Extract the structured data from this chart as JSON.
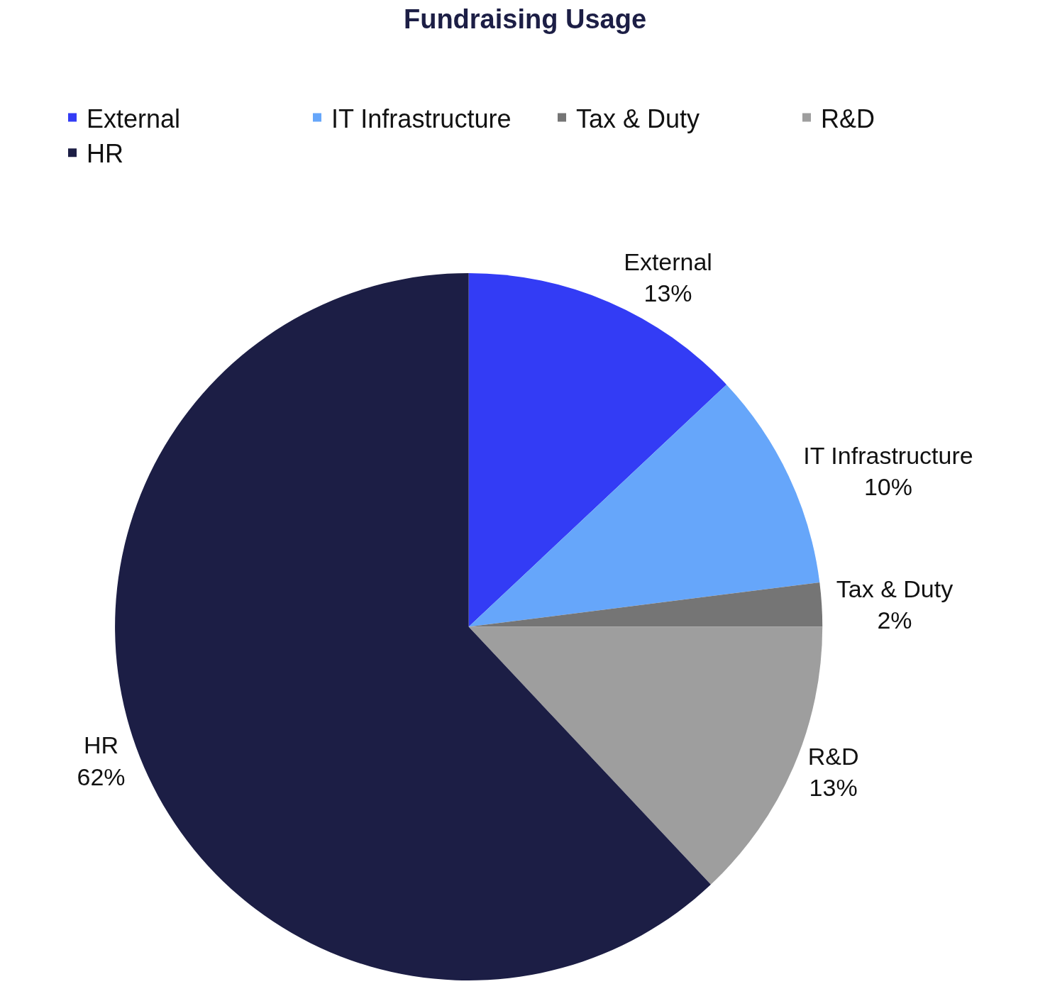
{
  "chart_data": {
    "type": "pie",
    "title": "Fundraising Usage",
    "categories": [
      "External",
      "IT Infrastructure",
      "Tax & Duty",
      "R&D",
      "HR"
    ],
    "values": [
      13,
      10,
      2,
      13,
      62
    ],
    "value_labels": [
      "13%",
      "10%",
      "2%",
      "13%",
      "62%"
    ],
    "colors": [
      "#333cf5",
      "#66a6fa",
      "#757575",
      "#9e9e9e",
      "#1c1e45"
    ],
    "legend": "top"
  }
}
